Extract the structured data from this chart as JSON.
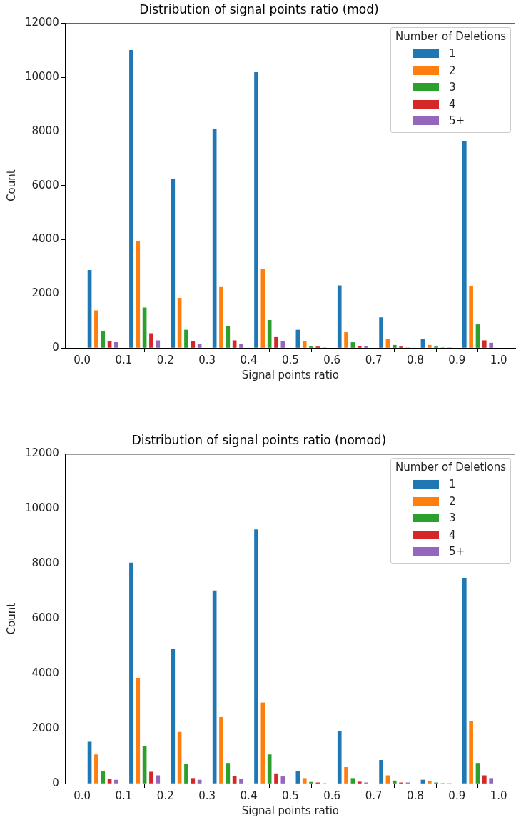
{
  "chart_data": [
    {
      "type": "histogram",
      "title": "Distribution of signal points ratio (mod)",
      "xlabel": "Signal points ratio",
      "ylabel": "Count",
      "legend_title": "Number of Deletions",
      "legend": "top right",
      "grid": false,
      "bins": [
        0,
        0.1,
        0.2,
        0.3,
        0.4,
        0.5,
        0.6,
        0.7,
        0.8,
        0.9,
        1.0
      ],
      "xlim": [
        -0.04,
        1.04
      ],
      "xticks": [
        {
          "value": 0,
          "label": "0.0"
        },
        {
          "value": 0.1,
          "label": "0.1"
        },
        {
          "value": 0.2,
          "label": "0.2"
        },
        {
          "value": 0.3,
          "label": "0.3"
        },
        {
          "value": 0.4,
          "label": "0.4"
        },
        {
          "value": 0.5,
          "label": "0.5"
        },
        {
          "value": 0.6,
          "label": "0.6"
        },
        {
          "value": 0.7,
          "label": "0.7"
        },
        {
          "value": 0.8,
          "label": "0.8"
        },
        {
          "value": 0.9,
          "label": "0.9"
        },
        {
          "value": 1.0,
          "label": "1.0"
        }
      ],
      "ylim": [
        0,
        12000
      ],
      "yticks": [
        0,
        2000,
        4000,
        6000,
        8000,
        10000,
        12000
      ],
      "series": [
        {
          "name": "1",
          "color": "#1f77b4",
          "values": [
            2870,
            11000,
            6230,
            8080,
            10180,
            660,
            2300,
            1120,
            310,
            7620
          ]
        },
        {
          "name": "2",
          "color": "#ff7f0e",
          "values": [
            1380,
            3930,
            1840,
            2240,
            2920,
            240,
            570,
            310,
            100,
            2270
          ]
        },
        {
          "name": "3",
          "color": "#2ca02c",
          "values": [
            620,
            1480,
            660,
            800,
            1020,
            70,
            200,
            100,
            40,
            860
          ]
        },
        {
          "name": "4",
          "color": "#d62728",
          "values": [
            240,
            530,
            240,
            270,
            390,
            40,
            70,
            40,
            0,
            270
          ]
        },
        {
          "name": "5+",
          "color": "#9467bd",
          "values": [
            200,
            270,
            140,
            140,
            240,
            0,
            70,
            0,
            0,
            180
          ]
        }
      ]
    },
    {
      "type": "histogram",
      "title": "Distribution of signal points ratio (nomod)",
      "xlabel": "Signal points ratio",
      "ylabel": "Count",
      "legend_title": "Number of Deletions",
      "legend": "top right",
      "grid": false,
      "bins": [
        0,
        0.1,
        0.2,
        0.3,
        0.4,
        0.5,
        0.6,
        0.7,
        0.8,
        0.9,
        1.0
      ],
      "xlim": [
        -0.04,
        1.04
      ],
      "xticks": [
        {
          "value": 0,
          "label": "0.0"
        },
        {
          "value": 0.1,
          "label": "0.1"
        },
        {
          "value": 0.2,
          "label": "0.2"
        },
        {
          "value": 0.3,
          "label": "0.3"
        },
        {
          "value": 0.4,
          "label": "0.4"
        },
        {
          "value": 0.5,
          "label": "0.5"
        },
        {
          "value": 0.6,
          "label": "0.6"
        },
        {
          "value": 0.7,
          "label": "0.7"
        },
        {
          "value": 0.8,
          "label": "0.8"
        },
        {
          "value": 0.9,
          "label": "0.9"
        },
        {
          "value": 1.0,
          "label": "1.0"
        }
      ],
      "ylim": [
        0,
        12000
      ],
      "yticks": [
        0,
        2000,
        4000,
        6000,
        8000,
        10000,
        12000
      ],
      "series": [
        {
          "name": "1",
          "color": "#1f77b4",
          "values": [
            1510,
            8030,
            4880,
            7020,
            9240,
            450,
            1900,
            850,
            130,
            7480
          ]
        },
        {
          "name": "2",
          "color": "#ff7f0e",
          "values": [
            1050,
            3840,
            1870,
            2410,
            2940,
            190,
            590,
            290,
            90,
            2270
          ]
        },
        {
          "name": "3",
          "color": "#2ca02c",
          "values": [
            450,
            1370,
            710,
            740,
            1050,
            50,
            190,
            100,
            30,
            740
          ]
        },
        {
          "name": "4",
          "color": "#d62728",
          "values": [
            160,
            420,
            190,
            260,
            360,
            30,
            60,
            30,
            0,
            290
          ]
        },
        {
          "name": "5+",
          "color": "#9467bd",
          "values": [
            130,
            290,
            130,
            160,
            250,
            0,
            30,
            30,
            0,
            190
          ]
        }
      ]
    }
  ]
}
